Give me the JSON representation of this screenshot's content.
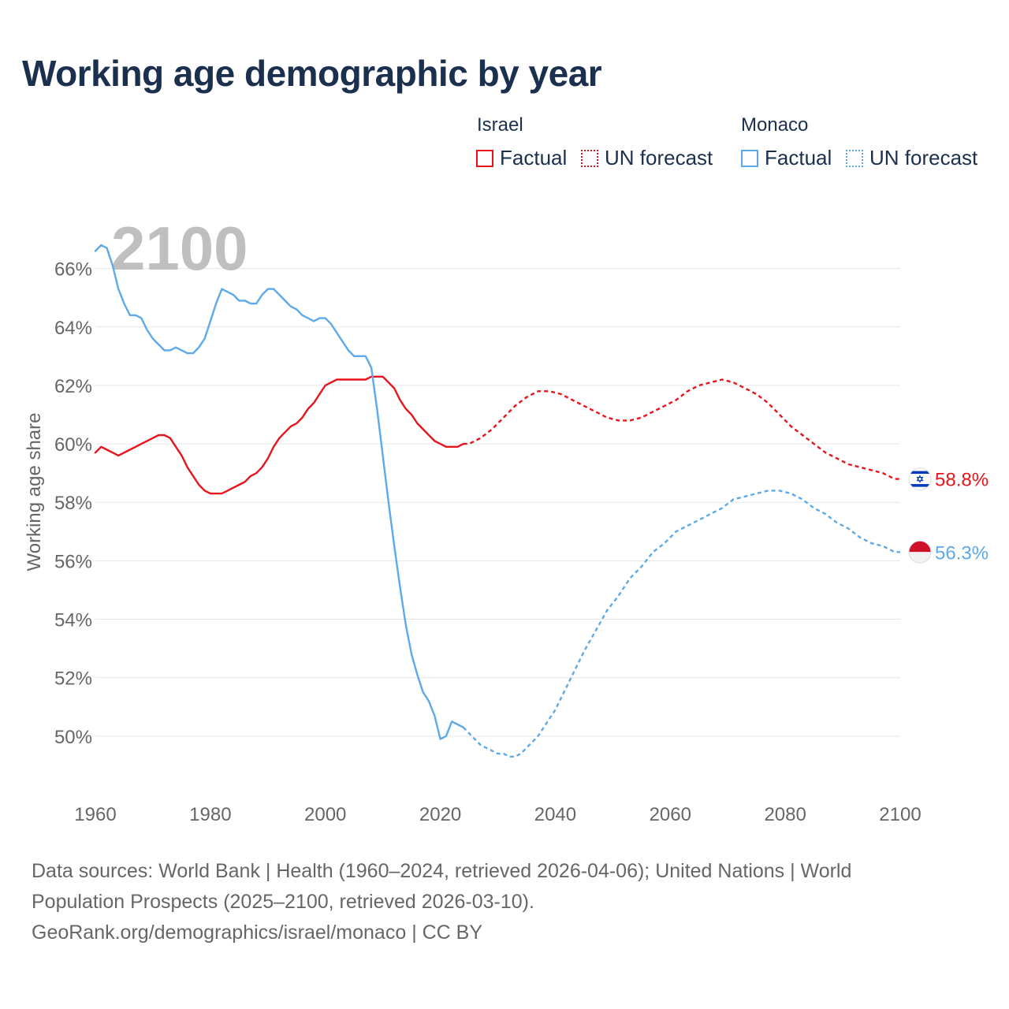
{
  "title": "Working age demographic by year",
  "legend": {
    "groups": [
      {
        "name": "Israel",
        "color": "#e8141c",
        "factual_label": "Factual",
        "forecast_label": "UN forecast"
      },
      {
        "name": "Monaco",
        "color": "#5da9e9",
        "factual_label": "Factual",
        "forecast_label": "UN forecast"
      }
    ]
  },
  "year_watermark": "2100",
  "footer": {
    "sources": "Data sources: World Bank | Health (1960–2024, retrieved 2026-04-06); United Nations | World Population Prospects (2025–2100, retrieved 2026-03-10).",
    "credit": "GeoRank.org/demographics/israel/monaco | CC BY"
  },
  "chart_data": {
    "type": "line",
    "title": "Working age demographic by year",
    "xlabel": "",
    "ylabel": "Working age share",
    "xlim": [
      1960,
      2100
    ],
    "ylim": [
      48,
      67.5
    ],
    "x_ticks": [
      1960,
      1980,
      2000,
      2020,
      2040,
      2060,
      2080,
      2100
    ],
    "y_ticks": [
      50,
      52,
      54,
      56,
      58,
      60,
      62,
      64,
      66
    ],
    "y_tick_suffix": "%",
    "grid": true,
    "series": [
      {
        "name": "Israel",
        "color": "#e8141c",
        "end_label": "58.8%",
        "flag": "israel-flag",
        "factual": {
          "x": [
            1960,
            1961,
            1962,
            1963,
            1964,
            1965,
            1966,
            1967,
            1968,
            1969,
            1970,
            1971,
            1972,
            1973,
            1974,
            1975,
            1976,
            1977,
            1978,
            1979,
            1980,
            1981,
            1982,
            1983,
            1984,
            1985,
            1986,
            1987,
            1988,
            1989,
            1990,
            1991,
            1992,
            1993,
            1994,
            1995,
            1996,
            1997,
            1998,
            1999,
            2000,
            2001,
            2002,
            2003,
            2004,
            2005,
            2006,
            2007,
            2008,
            2009,
            2010,
            2011,
            2012,
            2013,
            2014,
            2015,
            2016,
            2017,
            2018,
            2019,
            2020,
            2021,
            2022,
            2023,
            2024
          ],
          "y": [
            59.7,
            59.9,
            59.8,
            59.7,
            59.6,
            59.7,
            59.8,
            59.9,
            60.0,
            60.1,
            60.2,
            60.3,
            60.3,
            60.2,
            59.9,
            59.6,
            59.2,
            58.9,
            58.6,
            58.4,
            58.3,
            58.3,
            58.3,
            58.4,
            58.5,
            58.6,
            58.7,
            58.9,
            59.0,
            59.2,
            59.5,
            59.9,
            60.2,
            60.4,
            60.6,
            60.7,
            60.9,
            61.2,
            61.4,
            61.7,
            62.0,
            62.1,
            62.2,
            62.2,
            62.2,
            62.2,
            62.2,
            62.2,
            62.3,
            62.3,
            62.3,
            62.1,
            61.9,
            61.5,
            61.2,
            61.0,
            60.7,
            60.5,
            60.3,
            60.1,
            60.0,
            59.9,
            59.9,
            59.9,
            60.0
          ]
        },
        "forecast": {
          "x": [
            2024,
            2025,
            2027,
            2029,
            2031,
            2033,
            2035,
            2037,
            2039,
            2041,
            2043,
            2045,
            2047,
            2049,
            2051,
            2053,
            2055,
            2057,
            2059,
            2061,
            2063,
            2065,
            2067,
            2069,
            2071,
            2073,
            2075,
            2077,
            2079,
            2081,
            2083,
            2085,
            2087,
            2089,
            2091,
            2093,
            2095,
            2097,
            2099,
            2100
          ],
          "y": [
            60.0,
            60.0,
            60.2,
            60.5,
            60.9,
            61.3,
            61.6,
            61.8,
            61.8,
            61.7,
            61.5,
            61.3,
            61.1,
            60.9,
            60.8,
            60.8,
            60.9,
            61.1,
            61.3,
            61.5,
            61.8,
            62.0,
            62.1,
            62.2,
            62.1,
            61.9,
            61.7,
            61.4,
            61.0,
            60.6,
            60.3,
            60.0,
            59.7,
            59.5,
            59.3,
            59.2,
            59.1,
            59.0,
            58.8,
            58.8
          ]
        }
      },
      {
        "name": "Monaco",
        "color": "#5da9e9",
        "end_label": "56.3%",
        "flag": "monaco-flag",
        "factual": {
          "x": [
            1960,
            1961,
            1962,
            1963,
            1964,
            1965,
            1966,
            1967,
            1968,
            1969,
            1970,
            1971,
            1972,
            1973,
            1974,
            1975,
            1976,
            1977,
            1978,
            1979,
            1980,
            1981,
            1982,
            1983,
            1984,
            1985,
            1986,
            1987,
            1988,
            1989,
            1990,
            1991,
            1992,
            1993,
            1994,
            1995,
            1996,
            1997,
            1998,
            1999,
            2000,
            2001,
            2002,
            2003,
            2004,
            2005,
            2006,
            2007,
            2008,
            2009,
            2010,
            2011,
            2012,
            2013,
            2014,
            2015,
            2016,
            2017,
            2018,
            2019,
            2020,
            2021,
            2022,
            2023,
            2024
          ],
          "y": [
            66.6,
            66.8,
            66.7,
            66.1,
            65.3,
            64.8,
            64.4,
            64.4,
            64.3,
            63.9,
            63.6,
            63.4,
            63.2,
            63.2,
            63.3,
            63.2,
            63.1,
            63.1,
            63.3,
            63.6,
            64.2,
            64.8,
            65.3,
            65.2,
            65.1,
            64.9,
            64.9,
            64.8,
            64.8,
            65.1,
            65.3,
            65.3,
            65.1,
            64.9,
            64.7,
            64.6,
            64.4,
            64.3,
            64.2,
            64.3,
            64.3,
            64.1,
            63.8,
            63.5,
            63.2,
            63.0,
            63.0,
            63.0,
            62.6,
            61.2,
            59.6,
            58.0,
            56.5,
            55.1,
            53.8,
            52.8,
            52.1,
            51.5,
            51.2,
            50.7,
            49.9,
            50.0,
            50.5,
            50.4,
            50.3
          ]
        },
        "forecast": {
          "x": [
            2024,
            2025,
            2026,
            2027,
            2028,
            2029,
            2030,
            2031,
            2032,
            2033,
            2034,
            2035,
            2036,
            2037,
            2038,
            2039,
            2040,
            2041,
            2042,
            2043,
            2044,
            2045,
            2047,
            2049,
            2051,
            2053,
            2055,
            2057,
            2059,
            2061,
            2063,
            2065,
            2067,
            2069,
            2071,
            2073,
            2075,
            2077,
            2079,
            2081,
            2083,
            2085,
            2087,
            2089,
            2091,
            2093,
            2095,
            2097,
            2099,
            2100
          ],
          "y": [
            50.3,
            50.1,
            49.9,
            49.7,
            49.6,
            49.5,
            49.4,
            49.4,
            49.3,
            49.3,
            49.4,
            49.6,
            49.8,
            50.0,
            50.3,
            50.6,
            50.9,
            51.3,
            51.7,
            52.1,
            52.5,
            52.9,
            53.6,
            54.3,
            54.8,
            55.4,
            55.8,
            56.3,
            56.6,
            57.0,
            57.2,
            57.4,
            57.6,
            57.8,
            58.1,
            58.2,
            58.3,
            58.4,
            58.4,
            58.3,
            58.1,
            57.8,
            57.6,
            57.3,
            57.1,
            56.8,
            56.6,
            56.5,
            56.3,
            56.3
          ]
        }
      }
    ]
  }
}
